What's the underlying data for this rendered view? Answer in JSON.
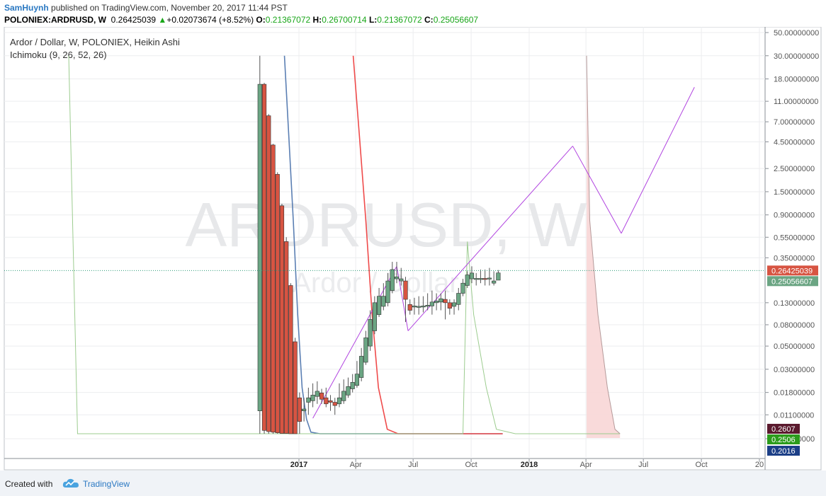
{
  "header": {
    "author": "SamHuynh",
    "published_text": " published on TradingView.com, November 20, 2017 11:44 PST",
    "symbol": "POLONIEX:ARDRUSD, W",
    "last": "0.26425039",
    "arrow": "▲",
    "change": "+0.02073674 (+8.52%)",
    "o_label": "O:",
    "o": "0.21367072",
    "h_label": "H:",
    "h": "0.26700714",
    "l_label": "L:",
    "l": "0.21367072",
    "c_label": "C:",
    "c": "0.25056607"
  },
  "footer": {
    "created_with": "Created with",
    "brand": "TradingView"
  },
  "colors": {
    "up": "#6ba583",
    "down": "#d75442",
    "tenkan": "#5b7fb3",
    "kijun": "#ef4b4b",
    "lagging": "#9ccc8f",
    "channel": "#b144e0",
    "cloud": "#f8d6d6",
    "price_line": "#2f9c7a",
    "axis_text": "#555555",
    "grid": "#ecedef"
  },
  "chart_data": {
    "type": "candlestick",
    "title": "Ardor / Dollar, W, POLONIEX, Heikin Ashi",
    "indicator": "Ichimoku (9, 26, 52, 26)",
    "watermark_main": "ARDRUSD, W",
    "watermark_sub": "Ardor / Dollar",
    "y_scale": "log",
    "y_ticks": [
      {
        "v": 50,
        "label": "50.00000000"
      },
      {
        "v": 30,
        "label": "30.00000000"
      },
      {
        "v": 18,
        "label": "18.00000000"
      },
      {
        "v": 11,
        "label": "11.00000000"
      },
      {
        "v": 7,
        "label": "7.00000000"
      },
      {
        "v": 4.5,
        "label": "4.50000000"
      },
      {
        "v": 2.5,
        "label": "2.50000000"
      },
      {
        "v": 1.5,
        "label": "1.50000000"
      },
      {
        "v": 0.9,
        "label": "0.90000000"
      },
      {
        "v": 0.55,
        "label": "0.55000000"
      },
      {
        "v": 0.35,
        "label": "0.35000000"
      },
      {
        "v": 0.13,
        "label": "0.13000000"
      },
      {
        "v": 0.08,
        "label": "0.08000000"
      },
      {
        "v": 0.05,
        "label": "0.05000000"
      },
      {
        "v": 0.03,
        "label": "0.03000000"
      },
      {
        "v": 0.018,
        "label": "0.01800000"
      },
      {
        "v": 0.011,
        "label": "0.01100000"
      },
      {
        "v": 0.0065,
        "label": "0.00650000"
      }
    ],
    "x_ticks": [
      {
        "date": "2017-01-01",
        "label": "2017",
        "bold": true
      },
      {
        "date": "2017-04-01",
        "label": "Apr"
      },
      {
        "date": "2017-07-01",
        "label": "Jul"
      },
      {
        "date": "2017-10-01",
        "label": "Oct"
      },
      {
        "date": "2018-01-01",
        "label": "2018",
        "bold": true
      },
      {
        "date": "2018-04-01",
        "label": "Apr"
      },
      {
        "date": "2018-07-01",
        "label": "Jul"
      },
      {
        "date": "2018-10-01",
        "label": "Oct"
      },
      {
        "date": "2019-01-01",
        "label": "20"
      }
    ],
    "price_labels": [
      {
        "value": 0.26425039,
        "label": "0.26425039",
        "bg": "#d75442",
        "fg": "#ffffff"
      },
      {
        "value": 0.25056607,
        "label": "0.25056607",
        "bg": "#6ba583",
        "fg": "#ffffff"
      },
      {
        "value": 0.0076,
        "label": "0.2607",
        "bg": "#5b1a2e",
        "fg": "#ffffff"
      },
      {
        "value": 0.0064,
        "label": "0.2506",
        "bg": "#2c9c1c",
        "fg": "#ffffff"
      },
      {
        "value": 0.0054,
        "label": "0.2016",
        "bg": "#1c3f87",
        "fg": "#ffffff"
      }
    ],
    "candles": [
      {
        "date": "2016-10-31",
        "o": 0.012,
        "h": 30,
        "l": 0.006,
        "c": 16
      },
      {
        "date": "2016-11-07",
        "o": 16,
        "h": 16.5,
        "l": 0.006,
        "c": 0.0078
      },
      {
        "date": "2016-11-14",
        "o": 8,
        "h": 8.3,
        "l": 0.006,
        "c": 0.0076
      },
      {
        "date": "2016-11-21",
        "o": 4.2,
        "h": 4.3,
        "l": 0.0062,
        "c": 0.0075
      },
      {
        "date": "2016-11-28",
        "o": 2.2,
        "h": 2.3,
        "l": 0.0062,
        "c": 0.0074
      },
      {
        "date": "2016-12-05",
        "o": 1.1,
        "h": 1.15,
        "l": 0.0063,
        "c": 0.0073
      },
      {
        "date": "2016-12-12",
        "o": 0.5,
        "h": 0.55,
        "l": 0.0065,
        "c": 0.0073
      },
      {
        "date": "2016-12-19",
        "o": 0.19,
        "h": 0.2,
        "l": 0.0066,
        "c": 0.0072
      },
      {
        "date": "2016-12-26",
        "o": 0.055,
        "h": 0.06,
        "l": 0.0066,
        "c": 0.0071
      },
      {
        "date": "2017-01-02",
        "o": 0.016,
        "h": 0.018,
        "l": 0.0068,
        "c": 0.0095
      },
      {
        "date": "2017-01-09",
        "o": 0.012,
        "h": 0.016,
        "l": 0.0095,
        "c": 0.0125
      },
      {
        "date": "2017-01-16",
        "o": 0.0145,
        "h": 0.02,
        "l": 0.011,
        "c": 0.016
      },
      {
        "date": "2017-01-23",
        "o": 0.015,
        "h": 0.022,
        "l": 0.013,
        "c": 0.017
      },
      {
        "date": "2017-01-30",
        "o": 0.0165,
        "h": 0.023,
        "l": 0.014,
        "c": 0.0185
      },
      {
        "date": "2017-02-06",
        "o": 0.0178,
        "h": 0.0195,
        "l": 0.014,
        "c": 0.0155
      },
      {
        "date": "2017-02-13",
        "o": 0.016,
        "h": 0.02,
        "l": 0.013,
        "c": 0.014
      },
      {
        "date": "2017-02-20",
        "o": 0.015,
        "h": 0.017,
        "l": 0.012,
        "c": 0.0145
      },
      {
        "date": "2017-02-27",
        "o": 0.0145,
        "h": 0.016,
        "l": 0.011,
        "c": 0.0135
      },
      {
        "date": "2017-03-06",
        "o": 0.014,
        "h": 0.022,
        "l": 0.013,
        "c": 0.016
      },
      {
        "date": "2017-03-13",
        "o": 0.015,
        "h": 0.024,
        "l": 0.014,
        "c": 0.0185
      },
      {
        "date": "2017-03-20",
        "o": 0.017,
        "h": 0.025,
        "l": 0.016,
        "c": 0.0205
      },
      {
        "date": "2017-03-27",
        "o": 0.0195,
        "h": 0.027,
        "l": 0.018,
        "c": 0.0225
      },
      {
        "date": "2017-04-03",
        "o": 0.021,
        "h": 0.036,
        "l": 0.02,
        "c": 0.027
      },
      {
        "date": "2017-04-10",
        "o": 0.025,
        "h": 0.048,
        "l": 0.023,
        "c": 0.04
      },
      {
        "date": "2017-04-17",
        "o": 0.035,
        "h": 0.07,
        "l": 0.033,
        "c": 0.06
      },
      {
        "date": "2017-04-24",
        "o": 0.05,
        "h": 0.11,
        "l": 0.045,
        "c": 0.09
      },
      {
        "date": "2017-05-01",
        "o": 0.07,
        "h": 0.15,
        "l": 0.065,
        "c": 0.13
      },
      {
        "date": "2017-05-08",
        "o": 0.1,
        "h": 0.18,
        "l": 0.095,
        "c": 0.15
      },
      {
        "date": "2017-05-15",
        "o": 0.12,
        "h": 0.2,
        "l": 0.11,
        "c": 0.15
      },
      {
        "date": "2017-05-22",
        "o": 0.13,
        "h": 0.25,
        "l": 0.12,
        "c": 0.21
      },
      {
        "date": "2017-05-29",
        "o": 0.17,
        "h": 0.32,
        "l": 0.16,
        "c": 0.27
      },
      {
        "date": "2017-06-05",
        "o": 0.22,
        "h": 0.32,
        "l": 0.2,
        "c": 0.23
      },
      {
        "date": "2017-06-12",
        "o": 0.21,
        "h": 0.28,
        "l": 0.19,
        "c": 0.22
      },
      {
        "date": "2017-06-19",
        "o": 0.21,
        "h": 0.23,
        "l": 0.085,
        "c": 0.14
      },
      {
        "date": "2017-06-26",
        "o": 0.125,
        "h": 0.14,
        "l": 0.1,
        "c": 0.11
      },
      {
        "date": "2017-07-03",
        "o": 0.12,
        "h": 0.145,
        "l": 0.1,
        "c": 0.121
      },
      {
        "date": "2017-07-10",
        "o": 0.119,
        "h": 0.15,
        "l": 0.1,
        "c": 0.12
      },
      {
        "date": "2017-07-17",
        "o": 0.12,
        "h": 0.15,
        "l": 0.105,
        "c": 0.121
      },
      {
        "date": "2017-07-24",
        "o": 0.122,
        "h": 0.16,
        "l": 0.11,
        "c": 0.123
      },
      {
        "date": "2017-07-31",
        "o": 0.121,
        "h": 0.17,
        "l": 0.1,
        "c": 0.132
      },
      {
        "date": "2017-08-07",
        "o": 0.13,
        "h": 0.16,
        "l": 0.11,
        "c": 0.135
      },
      {
        "date": "2017-08-14",
        "o": 0.132,
        "h": 0.16,
        "l": 0.11,
        "c": 0.142
      },
      {
        "date": "2017-08-21",
        "o": 0.14,
        "h": 0.17,
        "l": 0.09,
        "c": 0.13
      },
      {
        "date": "2017-08-28",
        "o": 0.13,
        "h": 0.14,
        "l": 0.1,
        "c": 0.115
      },
      {
        "date": "2017-09-04",
        "o": 0.12,
        "h": 0.14,
        "l": 0.1,
        "c": 0.13
      },
      {
        "date": "2017-09-11",
        "o": 0.125,
        "h": 0.18,
        "l": 0.11,
        "c": 0.16
      },
      {
        "date": "2017-09-18",
        "o": 0.16,
        "h": 0.22,
        "l": 0.15,
        "c": 0.2
      },
      {
        "date": "2017-09-25",
        "o": 0.19,
        "h": 0.26,
        "l": 0.18,
        "c": 0.24
      },
      {
        "date": "2017-10-02",
        "o": 0.22,
        "h": 0.29,
        "l": 0.2,
        "c": 0.25
      },
      {
        "date": "2017-10-09",
        "o": 0.22,
        "h": 0.25,
        "l": 0.19,
        "c": 0.222
      },
      {
        "date": "2017-10-16",
        "o": 0.22,
        "h": 0.27,
        "l": 0.2,
        "c": 0.222
      },
      {
        "date": "2017-10-23",
        "o": 0.222,
        "h": 0.27,
        "l": 0.19,
        "c": 0.218
      },
      {
        "date": "2017-10-30",
        "o": 0.22,
        "h": 0.28,
        "l": 0.19,
        "c": 0.224
      },
      {
        "date": "2017-11-06",
        "o": 0.2,
        "h": 0.26,
        "l": 0.19,
        "c": 0.21
      },
      {
        "date": "2017-11-13",
        "o": 0.2137,
        "h": 0.267,
        "l": 0.2137,
        "c": 0.2506
      }
    ],
    "series": [
      {
        "name": "tenkan",
        "points": [
          [
            "2016-12-09",
            30
          ],
          [
            "2016-12-16",
            5
          ],
          [
            "2016-12-23",
            0.8
          ],
          [
            "2016-12-30",
            0.1
          ],
          [
            "2017-01-06",
            0.02
          ],
          [
            "2017-01-13",
            0.01
          ],
          [
            "2017-01-20",
            0.0075
          ],
          [
            "2017-02-03",
            0.0058
          ],
          [
            "2017-06-01",
            0.0058
          ],
          [
            "2017-06-15",
            0.0063
          ],
          [
            "2017-11-20",
            0.0065
          ]
        ]
      },
      {
        "name": "kijun",
        "points": [
          [
            "2017-03-28",
            30
          ],
          [
            "2017-04-07",
            5
          ],
          [
            "2017-04-17",
            0.8
          ],
          [
            "2017-04-27",
            0.1
          ],
          [
            "2017-05-07",
            0.02
          ],
          [
            "2017-05-21",
            0.008
          ],
          [
            "2017-06-07",
            0.0063
          ],
          [
            "2017-11-20",
            0.0066
          ]
        ]
      },
      {
        "name": "lagging",
        "points": [
          [
            "2016-01-02",
            30
          ],
          [
            "2016-01-16",
            0.0058
          ],
          [
            "2016-10-20",
            0.0058
          ],
          [
            "2016-12-15",
            0.0063
          ],
          [
            "2017-03-01",
            0.0066
          ],
          [
            "2017-09-18",
            0.0066
          ],
          [
            "2017-09-25",
            0.5
          ],
          [
            "2017-10-05",
            0.1
          ],
          [
            "2017-10-25",
            0.02
          ],
          [
            "2017-11-10",
            0.008
          ],
          [
            "2017-12-10",
            0.0064
          ],
          [
            "2018-05-25",
            0.0066
          ]
        ]
      },
      {
        "name": "span_b",
        "points": [
          [
            "2018-04-02",
            30
          ],
          [
            "2018-04-07",
            0.8
          ],
          [
            "2018-04-20",
            0.1
          ],
          [
            "2018-05-05",
            0.02
          ],
          [
            "2018-05-17",
            0.008
          ],
          [
            "2018-05-25",
            0.0066
          ]
        ]
      },
      {
        "name": "channel",
        "points": [
          [
            "2017-01-23",
            0.0102
          ],
          [
            "2017-06-05",
            0.29
          ]
        ]
      },
      {
        "name": "channel",
        "points": [
          [
            "2017-06-05",
            0.29
          ],
          [
            "2017-06-23",
            0.07
          ]
        ]
      },
      {
        "name": "channel",
        "points": [
          [
            "2017-06-23",
            0.07
          ],
          [
            "2018-03-11",
            4.1
          ]
        ]
      },
      {
        "name": "channel",
        "points": [
          [
            "2018-03-11",
            4.1
          ],
          [
            "2018-05-27",
            0.6
          ]
        ]
      },
      {
        "name": "channel",
        "points": [
          [
            "2018-05-27",
            0.6
          ],
          [
            "2018-09-20",
            15
          ]
        ]
      }
    ],
    "last_price": 0.25056607,
    "last_price_line": 0.26425039
  }
}
